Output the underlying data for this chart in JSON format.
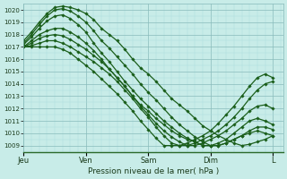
{
  "title": "",
  "xlabel": "Pression niveau de la mer( hPa )",
  "bg_color": "#c8ece8",
  "grid_major_color": "#88bbbb",
  "grid_minor_color": "#aadddd",
  "line_color": "#1a5e1a",
  "ylim": [
    1008.5,
    1020.5
  ],
  "yticks": [
    1009,
    1010,
    1011,
    1012,
    1013,
    1014,
    1015,
    1016,
    1017,
    1018,
    1019,
    1020
  ],
  "day_labels": [
    "Jeu",
    "Ven",
    "Sam",
    "Dim",
    "L"
  ],
  "day_positions": [
    0,
    24,
    48,
    72,
    96
  ],
  "total_hours": 100,
  "lines": [
    {
      "x": [
        0,
        3,
        6,
        9,
        12,
        15,
        18,
        21,
        24,
        27,
        30,
        33,
        36,
        39,
        42,
        45,
        48,
        51,
        54,
        57,
        60,
        63,
        66,
        69,
        72,
        75,
        78,
        81,
        84,
        87,
        90,
        93,
        96
      ],
      "y": [
        1017.5,
        1018.2,
        1019.0,
        1019.7,
        1020.2,
        1020.3,
        1020.2,
        1020.0,
        1019.7,
        1019.2,
        1018.5,
        1018.0,
        1017.5,
        1016.8,
        1016.0,
        1015.3,
        1014.8,
        1014.2,
        1013.5,
        1012.8,
        1012.3,
        1011.8,
        1011.2,
        1010.6,
        1010.2,
        1009.8,
        1009.5,
        1009.2,
        1009.0,
        1009.1,
        1009.3,
        1009.5,
        1009.8
      ]
    },
    {
      "x": [
        0,
        3,
        6,
        9,
        12,
        15,
        18,
        21,
        24,
        27,
        30,
        33,
        36,
        39,
        42,
        45,
        48,
        51,
        54,
        57,
        60,
        63,
        66,
        69,
        72,
        75,
        78,
        81,
        84,
        87,
        90,
        93,
        96
      ],
      "y": [
        1017.3,
        1018.0,
        1018.8,
        1019.5,
        1020.0,
        1020.1,
        1019.9,
        1019.5,
        1019.0,
        1018.3,
        1017.5,
        1016.9,
        1016.2,
        1015.5,
        1014.8,
        1014.0,
        1013.3,
        1012.7,
        1012.0,
        1011.3,
        1010.7,
        1010.2,
        1009.7,
        1009.3,
        1009.0,
        1009.0,
        1009.2,
        1009.5,
        1009.8,
        1010.0,
        1010.2,
        1010.0,
        1009.8
      ]
    },
    {
      "x": [
        0,
        3,
        6,
        9,
        12,
        15,
        18,
        21,
        24,
        27,
        30,
        33,
        36,
        39,
        42,
        45,
        48,
        51,
        54,
        57,
        60,
        63,
        66,
        69,
        72,
        75,
        78,
        81,
        84,
        87,
        90,
        93,
        96
      ],
      "y": [
        1017.2,
        1017.8,
        1018.5,
        1019.1,
        1019.5,
        1019.6,
        1019.3,
        1018.8,
        1018.2,
        1017.3,
        1016.5,
        1015.8,
        1015.0,
        1014.2,
        1013.5,
        1012.8,
        1012.2,
        1011.6,
        1011.0,
        1010.5,
        1010.0,
        1009.6,
        1009.3,
        1009.0,
        1009.0,
        1009.0,
        1009.2,
        1009.5,
        1009.8,
        1010.2,
        1010.5,
        1010.5,
        1010.3
      ]
    },
    {
      "x": [
        0,
        3,
        6,
        9,
        12,
        15,
        18,
        21,
        24,
        27,
        30,
        33,
        36,
        39,
        42,
        45,
        48,
        51,
        54,
        57,
        60,
        63,
        66,
        69,
        72,
        75,
        78,
        81,
        84,
        87,
        90,
        93,
        96
      ],
      "y": [
        1017.0,
        1017.5,
        1018.0,
        1018.3,
        1018.5,
        1018.5,
        1018.2,
        1017.8,
        1017.3,
        1016.7,
        1016.0,
        1015.2,
        1014.5,
        1013.8,
        1013.0,
        1012.3,
        1011.8,
        1011.2,
        1010.7,
        1010.2,
        1009.8,
        1009.5,
        1009.3,
        1009.0,
        1009.0,
        1009.2,
        1009.5,
        1010.0,
        1010.5,
        1011.0,
        1011.2,
        1011.0,
        1010.7
      ]
    },
    {
      "x": [
        0,
        3,
        6,
        9,
        12,
        15,
        18,
        21,
        24,
        27,
        30,
        33,
        36,
        39,
        42,
        45,
        48,
        51,
        54,
        57,
        60,
        63,
        66,
        69,
        72,
        75,
        78,
        81,
        84,
        87,
        90,
        93,
        96
      ],
      "y": [
        1017.0,
        1017.3,
        1017.7,
        1017.9,
        1018.0,
        1017.9,
        1017.6,
        1017.2,
        1016.8,
        1016.3,
        1015.8,
        1015.2,
        1014.5,
        1013.8,
        1013.0,
        1012.2,
        1011.5,
        1010.8,
        1010.2,
        1009.7,
        1009.3,
        1009.0,
        1009.0,
        1009.2,
        1009.5,
        1009.8,
        1010.2,
        1010.7,
        1011.2,
        1011.8,
        1012.2,
        1012.3,
        1012.0
      ]
    },
    {
      "x": [
        0,
        3,
        6,
        9,
        12,
        15,
        18,
        21,
        24,
        27,
        30,
        33,
        36,
        39,
        42,
        45,
        48,
        51,
        54,
        57,
        60,
        63,
        66,
        69,
        72,
        75,
        78,
        81,
        84,
        87,
        90,
        93,
        96
      ],
      "y": [
        1017.0,
        1017.1,
        1017.3,
        1017.5,
        1017.5,
        1017.3,
        1017.0,
        1016.6,
        1016.2,
        1015.8,
        1015.3,
        1014.8,
        1014.2,
        1013.5,
        1012.8,
        1012.0,
        1011.3,
        1010.5,
        1009.8,
        1009.2,
        1009.0,
        1009.0,
        1009.2,
        1009.5,
        1009.8,
        1010.2,
        1010.7,
        1011.3,
        1012.0,
        1012.8,
        1013.5,
        1014.0,
        1014.2
      ]
    },
    {
      "x": [
        0,
        3,
        6,
        9,
        12,
        15,
        18,
        21,
        24,
        27,
        30,
        33,
        36,
        39,
        42,
        45,
        48,
        51,
        54,
        57,
        60,
        63,
        66,
        69,
        72,
        75,
        78,
        81,
        84,
        87,
        90,
        93,
        96
      ],
      "y": [
        1017.0,
        1017.0,
        1017.0,
        1017.0,
        1017.0,
        1016.8,
        1016.5,
        1016.0,
        1015.5,
        1015.0,
        1014.4,
        1013.8,
        1013.2,
        1012.5,
        1011.8,
        1011.0,
        1010.3,
        1009.6,
        1009.0,
        1009.0,
        1009.0,
        1009.2,
        1009.5,
        1009.8,
        1010.2,
        1010.8,
        1011.5,
        1012.2,
        1013.0,
        1013.8,
        1014.5,
        1014.8,
        1014.5
      ]
    }
  ]
}
